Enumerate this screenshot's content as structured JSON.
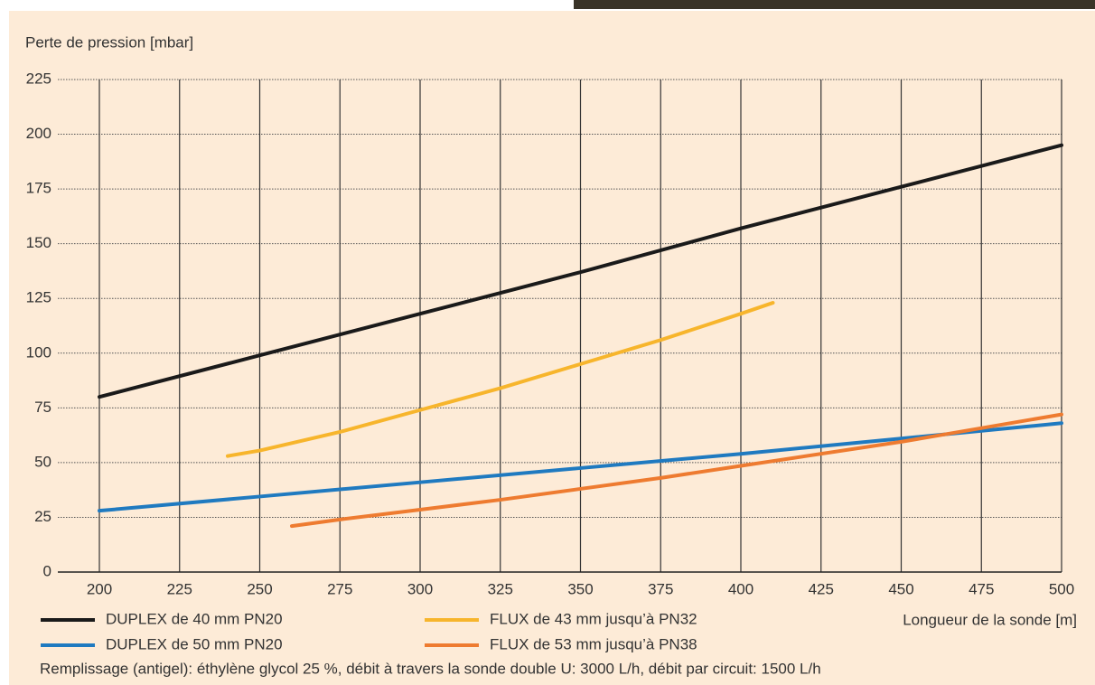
{
  "chart_data": {
    "type": "line",
    "y_axis_label": "Perte de pression  [mbar]",
    "x_axis_label": "Longueur de la sonde  [m]",
    "note": "Remplissage (antigel): éthylène glycol 25 %, débit à travers la sonde double U: 3000 L/h, débit par circuit: 1500 L/h",
    "xlim": [
      200,
      500
    ],
    "xticks": [
      200,
      225,
      250,
      275,
      300,
      325,
      350,
      375,
      400,
      425,
      450,
      475,
      500
    ],
    "ylim": [
      0,
      225
    ],
    "yticks": [
      0,
      25,
      50,
      75,
      100,
      125,
      150,
      175,
      200,
      225
    ],
    "grid": true,
    "series": [
      {
        "name": "DUPLEX de 40 mm PN20",
        "color": "#1a1a1a",
        "x": [
          200,
          250,
          300,
          350,
          400,
          450,
          500
        ],
        "values": [
          80,
          99,
          118,
          137,
          157,
          176,
          195
        ]
      },
      {
        "name": "DUPLEX de 50 mm PN20",
        "color": "#1f7ac0",
        "x": [
          200,
          250,
          300,
          350,
          400,
          450,
          500
        ],
        "values": [
          28,
          34.5,
          41,
          47.5,
          54,
          61,
          68
        ]
      },
      {
        "name": "FLUX de 43 mm jusqu’à PN32",
        "color": "#f7b52c",
        "x": [
          240,
          250,
          275,
          300,
          325,
          350,
          375,
          400,
          410
        ],
        "values": [
          53,
          55.5,
          64,
          74,
          84,
          95,
          106,
          118,
          123
        ]
      },
      {
        "name": "FLUX de 53 mm jusqu’à PN38",
        "color": "#ee7b30",
        "x": [
          260,
          275,
          300,
          325,
          350,
          375,
          400,
          450,
          500
        ],
        "values": [
          21,
          24,
          28.5,
          33,
          38,
          43,
          48.5,
          59.5,
          72
        ]
      }
    ]
  }
}
